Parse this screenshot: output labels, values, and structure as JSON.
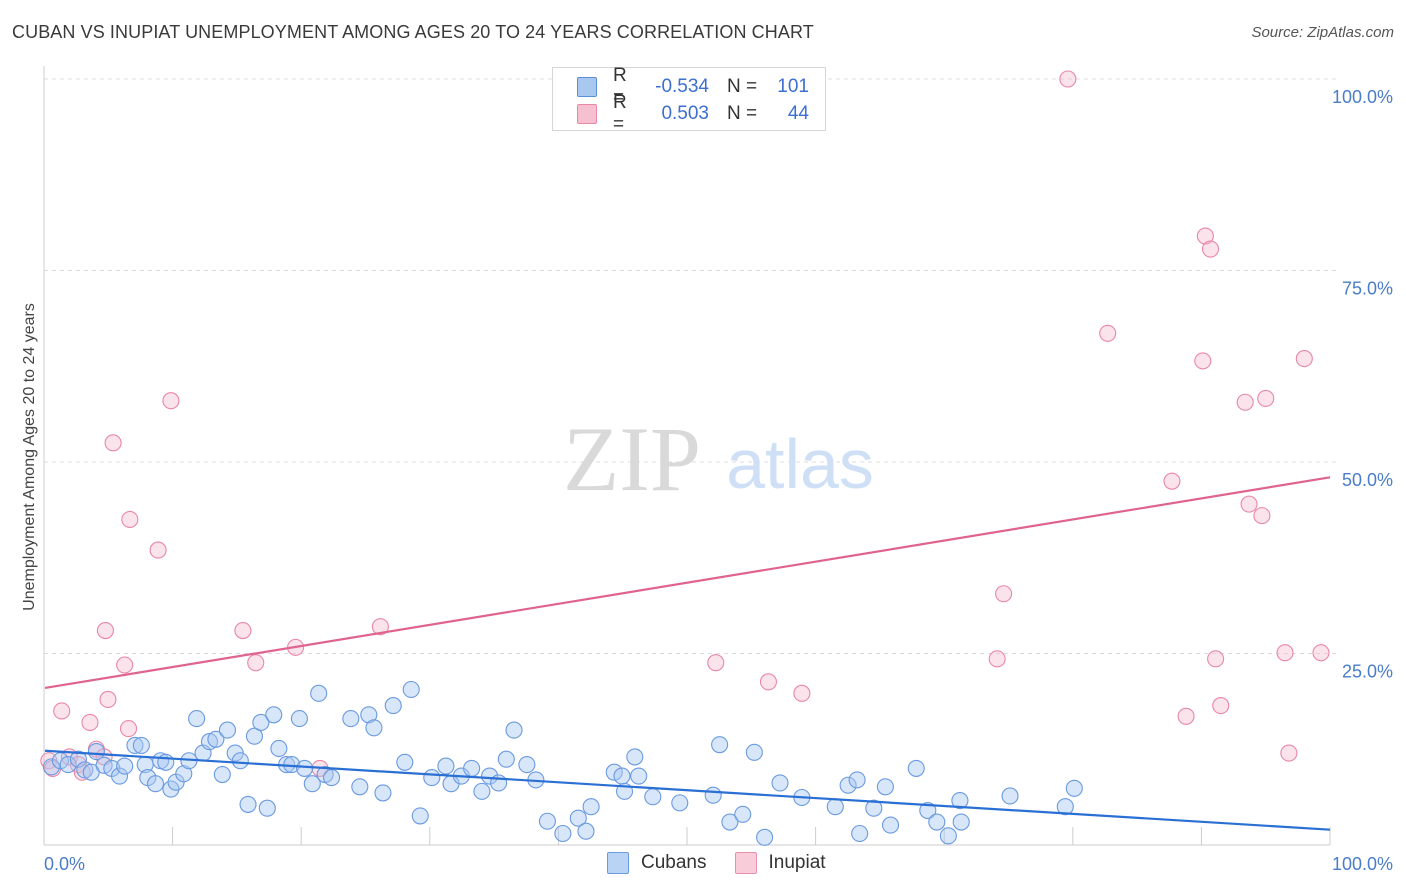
{
  "title": "CUBAN VS INUPIAT UNEMPLOYMENT AMONG AGES 20 TO 24 YEARS CORRELATION CHART",
  "source": "Source: ZipAtlas.com",
  "watermark": {
    "zip": "ZIP",
    "atlas": "atlas"
  },
  "legend": {
    "rows": [
      {
        "r_label": "R =",
        "r_value": "-0.534",
        "n_label": "N =",
        "n_value": "101",
        "color": "#a9c8f0",
        "border": "#5a8fd8"
      },
      {
        "r_label": "R =",
        "r_value": "0.503",
        "n_label": "N =",
        "n_value": "44",
        "color": "#f6c0d0",
        "border": "#e887a6"
      }
    ]
  },
  "bottom_legend": [
    {
      "label": "Cubans",
      "color": "#b9d3f4",
      "border": "#6a9ae0"
    },
    {
      "label": "Inupiat",
      "color": "#f8ccd9",
      "border": "#e98fad"
    }
  ],
  "chart_data": {
    "type": "scatter",
    "title": "CUBAN VS INUPIAT UNEMPLOYMENT AMONG AGES 20 TO 24 YEARS CORRELATION CHART",
    "xlabel": "",
    "ylabel": "Unemployment Among Ages 20 to 24 years",
    "xlim": [
      0,
      100
    ],
    "ylim": [
      0,
      100
    ],
    "x_tick_labels": [
      "0.0%",
      "100.0%"
    ],
    "y_tick_labels": [
      "25.0%",
      "50.0%",
      "75.0%",
      "100.0%"
    ],
    "y_ticks": [
      25,
      50,
      75,
      100
    ],
    "grid": true,
    "series": [
      {
        "name": "Cubans",
        "color": "#6a9ae0",
        "fill": "rgba(168,200,242,0.45)",
        "trend": [
          [
            0,
            12.3
          ],
          [
            100,
            2.0
          ]
        ],
        "points": [
          [
            0.5,
            10.2
          ],
          [
            1.2,
            11.0
          ],
          [
            1.8,
            10.5
          ],
          [
            2.6,
            11.2
          ],
          [
            3.1,
            9.8
          ],
          [
            3.6,
            9.5
          ],
          [
            4.0,
            12.2
          ],
          [
            4.6,
            10.4
          ],
          [
            5.2,
            10.0
          ],
          [
            5.8,
            9.0
          ],
          [
            6.2,
            10.3
          ],
          [
            7.0,
            13.0
          ],
          [
            7.5,
            13.0
          ],
          [
            7.8,
            10.5
          ],
          [
            8.0,
            8.8
          ],
          [
            8.6,
            8.0
          ],
          [
            9.0,
            11.0
          ],
          [
            9.4,
            10.8
          ],
          [
            9.8,
            7.3
          ],
          [
            10.2,
            8.2
          ],
          [
            10.8,
            9.3
          ],
          [
            11.2,
            11.0
          ],
          [
            11.8,
            16.5
          ],
          [
            12.3,
            12.0
          ],
          [
            12.8,
            13.5
          ],
          [
            13.3,
            13.8
          ],
          [
            13.8,
            9.2
          ],
          [
            14.2,
            15.0
          ],
          [
            14.8,
            12.0
          ],
          [
            15.2,
            11.0
          ],
          [
            15.8,
            5.3
          ],
          [
            16.3,
            14.2
          ],
          [
            16.8,
            16.0
          ],
          [
            17.3,
            4.8
          ],
          [
            17.8,
            17.0
          ],
          [
            18.2,
            12.6
          ],
          [
            18.8,
            10.5
          ],
          [
            19.2,
            10.5
          ],
          [
            19.8,
            16.5
          ],
          [
            20.2,
            10.0
          ],
          [
            20.8,
            8.0
          ],
          [
            21.3,
            19.8
          ],
          [
            21.8,
            9.2
          ],
          [
            22.3,
            8.8
          ],
          [
            23.8,
            16.5
          ],
          [
            24.5,
            7.6
          ],
          [
            25.2,
            17.0
          ],
          [
            25.6,
            15.3
          ],
          [
            26.3,
            6.8
          ],
          [
            27.1,
            18.2
          ],
          [
            28.0,
            10.8
          ],
          [
            28.5,
            20.3
          ],
          [
            29.2,
            3.8
          ],
          [
            30.1,
            8.8
          ],
          [
            31.2,
            10.3
          ],
          [
            31.6,
            8.0
          ],
          [
            32.4,
            9.0
          ],
          [
            33.2,
            10.0
          ],
          [
            34.0,
            7.0
          ],
          [
            34.6,
            9.0
          ],
          [
            35.3,
            8.1
          ],
          [
            35.9,
            11.2
          ],
          [
            36.5,
            15.0
          ],
          [
            37.5,
            10.5
          ],
          [
            38.2,
            8.5
          ],
          [
            39.1,
            3.1
          ],
          [
            40.3,
            1.5
          ],
          [
            41.5,
            3.5
          ],
          [
            42.1,
            1.8
          ],
          [
            42.5,
            5.0
          ],
          [
            44.3,
            9.5
          ],
          [
            44.9,
            9.0
          ],
          [
            45.1,
            7.0
          ],
          [
            45.9,
            11.5
          ],
          [
            46.2,
            9.0
          ],
          [
            47.3,
            6.3
          ],
          [
            49.4,
            5.5
          ],
          [
            52.0,
            6.5
          ],
          [
            52.5,
            13.1
          ],
          [
            53.3,
            3.0
          ],
          [
            54.3,
            4.0
          ],
          [
            55.2,
            12.1
          ],
          [
            56.0,
            1.0
          ],
          [
            57.2,
            8.1
          ],
          [
            58.9,
            6.2
          ],
          [
            61.5,
            5.0
          ],
          [
            62.5,
            7.8
          ],
          [
            63.2,
            8.5
          ],
          [
            63.4,
            1.5
          ],
          [
            64.5,
            4.8
          ],
          [
            65.4,
            7.6
          ],
          [
            65.8,
            2.6
          ],
          [
            67.8,
            10.0
          ],
          [
            68.7,
            4.5
          ],
          [
            69.4,
            3.0
          ],
          [
            70.3,
            1.2
          ],
          [
            71.3,
            3.0
          ],
          [
            71.2,
            5.8
          ],
          [
            75.1,
            6.4
          ],
          [
            79.4,
            5.0
          ],
          [
            80.1,
            7.4
          ]
        ]
      },
      {
        "name": "Inupiat",
        "color": "#e887a6",
        "fill": "rgba(246,184,204,0.40)",
        "trend": [
          [
            0,
            20.5
          ],
          [
            100,
            48.0
          ]
        ],
        "points": [
          [
            0.3,
            11.0
          ],
          [
            0.6,
            10.0
          ],
          [
            1.3,
            17.5
          ],
          [
            1.9,
            11.5
          ],
          [
            2.6,
            10.5
          ],
          [
            2.9,
            9.5
          ],
          [
            3.5,
            16.0
          ],
          [
            4.0,
            12.5
          ],
          [
            4.6,
            11.5
          ],
          [
            4.7,
            28.0
          ],
          [
            4.9,
            19.0
          ],
          [
            5.3,
            52.5
          ],
          [
            6.2,
            23.5
          ],
          [
            6.5,
            15.2
          ],
          [
            6.6,
            42.5
          ],
          [
            8.8,
            38.5
          ],
          [
            9.8,
            58.0
          ],
          [
            15.4,
            28.0
          ],
          [
            16.4,
            23.8
          ],
          [
            19.5,
            25.8
          ],
          [
            21.4,
            10.0
          ],
          [
            26.1,
            28.5
          ],
          [
            52.2,
            23.8
          ],
          [
            56.3,
            21.3
          ],
          [
            58.9,
            19.8
          ],
          [
            74.1,
            24.3
          ],
          [
            74.6,
            32.8
          ],
          [
            79.6,
            100.0
          ],
          [
            82.7,
            66.8
          ],
          [
            87.7,
            47.5
          ],
          [
            88.8,
            16.8
          ],
          [
            90.1,
            63.2
          ],
          [
            90.3,
            79.5
          ],
          [
            90.7,
            77.8
          ],
          [
            91.1,
            24.3
          ],
          [
            91.5,
            18.2
          ],
          [
            93.4,
            57.8
          ],
          [
            93.7,
            44.5
          ],
          [
            94.7,
            43.0
          ],
          [
            95.0,
            58.3
          ],
          [
            96.5,
            25.1
          ],
          [
            96.8,
            12.0
          ],
          [
            98.0,
            63.5
          ],
          [
            99.3,
            25.1
          ]
        ]
      }
    ]
  }
}
